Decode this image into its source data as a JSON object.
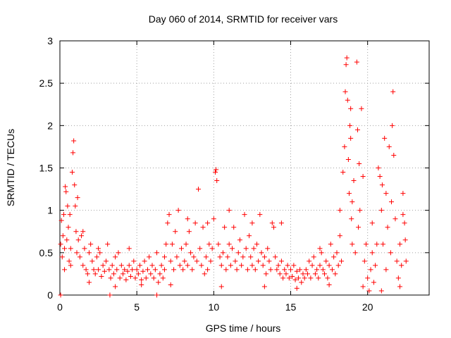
{
  "chart_data": {
    "type": "scatter",
    "title": "Day 060 of 2014, SRMTID for receiver vars",
    "xlabel": "GPS time / hours",
    "ylabel": "SRMTID / TECUs",
    "xlim": [
      0,
      24
    ],
    "ylim": [
      0,
      3
    ],
    "xticks": [
      0,
      5,
      10,
      15,
      20
    ],
    "xtick_labels": [
      "0",
      "5",
      "10",
      "15",
      "20"
    ],
    "yticks": [
      0,
      0.5,
      1,
      1.5,
      2,
      2.5,
      3
    ],
    "ytick_labels": [
      "0",
      "0.5",
      "1",
      "1.5",
      "2",
      "2.5",
      "3"
    ],
    "grid": true,
    "marker": "+",
    "color": "#ff0000",
    "series": [
      {
        "name": "SRMTID",
        "points": [
          [
            0.05,
            0.6
          ],
          [
            0.1,
            0.88
          ],
          [
            0.15,
            0.45
          ],
          [
            0.2,
            0.7
          ],
          [
            0.25,
            0.95
          ],
          [
            0.3,
            0.55
          ],
          [
            0.35,
            1.28
          ],
          [
            0.4,
            1.22
          ],
          [
            0.45,
            0.65
          ],
          [
            0.5,
            1.05
          ],
          [
            0.55,
            0.8
          ],
          [
            0.6,
            0.4
          ],
          [
            0.65,
            0.95
          ],
          [
            0.7,
            0.55
          ],
          [
            0.8,
            1.45
          ],
          [
            0.85,
            1.68
          ],
          [
            0.9,
            1.82
          ],
          [
            0.95,
            1.3
          ],
          [
            1.0,
            1.05
          ],
          [
            1.05,
            0.75
          ],
          [
            1.1,
            0.5
          ],
          [
            1.15,
            1.15
          ],
          [
            1.2,
            0.65
          ],
          [
            1.3,
            0.45
          ],
          [
            1.4,
            0.7
          ],
          [
            1.5,
            0.35
          ],
          [
            1.6,
            0.55
          ],
          [
            1.7,
            0.3
          ],
          [
            1.8,
            0.25
          ],
          [
            1.9,
            0.5
          ],
          [
            2.0,
            0.6
          ],
          [
            2.1,
            0.4
          ],
          [
            2.2,
            0.3
          ],
          [
            2.3,
            0.25
          ],
          [
            2.4,
            0.45
          ],
          [
            2.5,
            0.3
          ],
          [
            2.6,
            0.5
          ],
          [
            2.7,
            0.22
          ],
          [
            2.8,
            0.35
          ],
          [
            2.9,
            0.28
          ],
          [
            3.0,
            0.4
          ],
          [
            3.1,
            0.6
          ],
          [
            3.2,
            0.3
          ],
          [
            3.3,
            0.2
          ],
          [
            3.4,
            0.35
          ],
          [
            3.5,
            0.25
          ],
          [
            3.6,
            0.45
          ],
          [
            3.7,
            0.3
          ],
          [
            3.8,
            0.5
          ],
          [
            3.9,
            0.2
          ],
          [
            4.0,
            0.35
          ],
          [
            4.1,
            0.25
          ],
          [
            4.2,
            0.3
          ],
          [
            4.3,
            0.18
          ],
          [
            4.4,
            0.28
          ],
          [
            4.5,
            0.35
          ],
          [
            4.6,
            0.22
          ],
          [
            4.7,
            0.3
          ],
          [
            4.8,
            0.4
          ],
          [
            4.9,
            0.2
          ],
          [
            5.0,
            0.3
          ],
          [
            5.1,
            0.25
          ],
          [
            5.2,
            0.35
          ],
          [
            5.3,
            0.18
          ],
          [
            5.4,
            0.28
          ],
          [
            5.5,
            0.4
          ],
          [
            5.6,
            0.2
          ],
          [
            5.7,
            0.3
          ],
          [
            5.8,
            0.45
          ],
          [
            5.9,
            0.25
          ],
          [
            6.0,
            0.35
          ],
          [
            6.1,
            0.2
          ],
          [
            6.2,
            0.3
          ],
          [
            6.3,
            0.5
          ],
          [
            6.4,
            0.15
          ],
          [
            6.5,
            0.25
          ],
          [
            6.6,
            0.35
          ],
          [
            6.7,
            0.2
          ],
          [
            6.8,
            0.3
          ],
          [
            6.9,
            0.6
          ],
          [
            7.0,
            0.85
          ],
          [
            7.1,
            0.95
          ],
          [
            7.2,
            0.4
          ],
          [
            7.3,
            0.6
          ],
          [
            7.4,
            0.3
          ],
          [
            7.5,
            0.75
          ],
          [
            7.6,
            0.45
          ],
          [
            7.7,
            1.0
          ],
          [
            7.8,
            0.35
          ],
          [
            7.9,
            0.55
          ],
          [
            8.0,
            0.3
          ],
          [
            8.1,
            0.4
          ],
          [
            8.2,
            0.6
          ],
          [
            8.3,
            0.35
          ],
          [
            8.4,
            0.75
          ],
          [
            8.5,
            0.5
          ],
          [
            8.6,
            0.3
          ],
          [
            8.7,
            0.45
          ],
          [
            8.8,
            0.85
          ],
          [
            8.9,
            0.4
          ],
          [
            9.0,
            1.25
          ],
          [
            9.1,
            0.55
          ],
          [
            9.2,
            0.35
          ],
          [
            9.3,
            0.8
          ],
          [
            9.4,
            0.25
          ],
          [
            9.5,
            0.45
          ],
          [
            9.6,
            0.3
          ],
          [
            9.7,
            0.6
          ],
          [
            9.8,
            0.4
          ],
          [
            9.9,
            0.55
          ],
          [
            10.0,
            0.9
          ],
          [
            10.1,
            1.45
          ],
          [
            10.15,
            1.48
          ],
          [
            10.2,
            1.35
          ],
          [
            10.3,
            0.6
          ],
          [
            10.4,
            0.45
          ],
          [
            10.5,
            0.35
          ],
          [
            10.6,
            0.5
          ],
          [
            10.7,
            0.8
          ],
          [
            10.8,
            0.3
          ],
          [
            10.9,
            0.45
          ],
          [
            11.0,
            0.6
          ],
          [
            11.1,
            0.35
          ],
          [
            11.2,
            0.55
          ],
          [
            11.3,
            0.8
          ],
          [
            11.4,
            0.4
          ],
          [
            11.5,
            0.3
          ],
          [
            11.6,
            0.5
          ],
          [
            11.7,
            0.65
          ],
          [
            11.8,
            0.35
          ],
          [
            11.9,
            0.45
          ],
          [
            12.0,
            0.95
          ],
          [
            12.1,
            0.55
          ],
          [
            12.2,
            0.3
          ],
          [
            12.3,
            0.7
          ],
          [
            12.4,
            0.45
          ],
          [
            12.5,
            0.35
          ],
          [
            12.6,
            0.55
          ],
          [
            12.7,
            0.3
          ],
          [
            12.8,
            0.6
          ],
          [
            12.9,
            0.4
          ],
          [
            13.0,
            0.95
          ],
          [
            13.1,
            0.5
          ],
          [
            13.2,
            0.35
          ],
          [
            13.3,
            0.45
          ],
          [
            13.4,
            0.25
          ],
          [
            13.5,
            0.55
          ],
          [
            13.6,
            0.4
          ],
          [
            13.7,
            0.3
          ],
          [
            13.8,
            0.85
          ],
          [
            13.9,
            0.8
          ],
          [
            14.0,
            0.45
          ],
          [
            14.1,
            0.3
          ],
          [
            14.2,
            0.35
          ],
          [
            14.3,
            0.25
          ],
          [
            14.4,
            0.4
          ],
          [
            14.5,
            0.2
          ],
          [
            14.6,
            0.3
          ],
          [
            14.7,
            0.25
          ],
          [
            14.8,
            0.35
          ],
          [
            14.9,
            0.2
          ],
          [
            15.0,
            0.3
          ],
          [
            15.1,
            0.22
          ],
          [
            15.2,
            0.35
          ],
          [
            15.3,
            0.18
          ],
          [
            15.4,
            0.28
          ],
          [
            15.5,
            0.2
          ],
          [
            15.6,
            0.3
          ],
          [
            15.7,
            0.15
          ],
          [
            15.8,
            0.25
          ],
          [
            15.9,
            0.2
          ],
          [
            16.0,
            0.3
          ],
          [
            16.1,
            0.25
          ],
          [
            16.2,
            0.4
          ],
          [
            16.3,
            0.2
          ],
          [
            16.4,
            0.35
          ],
          [
            16.5,
            0.45
          ],
          [
            16.6,
            0.25
          ],
          [
            16.7,
            0.3
          ],
          [
            16.8,
            0.2
          ],
          [
            16.9,
            0.35
          ],
          [
            17.0,
            0.5
          ],
          [
            17.1,
            0.3
          ],
          [
            17.2,
            0.25
          ],
          [
            17.3,
            0.4
          ],
          [
            17.4,
            0.2
          ],
          [
            17.5,
            0.35
          ],
          [
            17.6,
            0.6
          ],
          [
            17.7,
            0.3
          ],
          [
            17.8,
            0.45
          ],
          [
            17.9,
            0.25
          ],
          [
            18.0,
            0.5
          ],
          [
            18.1,
            0.35
          ],
          [
            18.2,
            0.7
          ],
          [
            18.3,
            0.4
          ],
          [
            18.4,
            1.45
          ],
          [
            18.5,
            1.75
          ],
          [
            18.55,
            2.4
          ],
          [
            18.6,
            2.72
          ],
          [
            18.65,
            2.8
          ],
          [
            18.7,
            2.3
          ],
          [
            18.75,
            1.6
          ],
          [
            18.8,
            1.2
          ],
          [
            18.85,
            2.0
          ],
          [
            18.9,
            2.2
          ],
          [
            18.95,
            0.9
          ],
          [
            19.0,
            0.6
          ],
          [
            19.1,
            1.35
          ],
          [
            19.2,
            0.5
          ],
          [
            19.3,
            2.75
          ],
          [
            19.35,
            1.95
          ],
          [
            19.4,
            0.8
          ],
          [
            19.5,
            1.0
          ],
          [
            19.6,
            2.2
          ],
          [
            19.7,
            1.4
          ],
          [
            19.8,
            0.4
          ],
          [
            19.9,
            0.6
          ],
          [
            20.0,
            0.2
          ],
          [
            20.1,
            0.05
          ],
          [
            20.2,
            0.3
          ],
          [
            20.3,
            0.5
          ],
          [
            20.4,
            0.15
          ],
          [
            20.5,
            0.35
          ],
          [
            20.6,
            0.6
          ],
          [
            20.7,
            1.5
          ],
          [
            20.8,
            1.4
          ],
          [
            20.9,
            1.0
          ],
          [
            21.0,
            0.6
          ],
          [
            21.1,
            1.85
          ],
          [
            21.2,
            0.3
          ],
          [
            21.3,
            0.8
          ],
          [
            21.4,
            1.75
          ],
          [
            21.5,
            0.5
          ],
          [
            21.6,
            2.0
          ],
          [
            21.65,
            2.4
          ],
          [
            21.7,
            1.65
          ],
          [
            21.8,
            0.9
          ],
          [
            21.9,
            0.4
          ],
          [
            22.0,
            0.2
          ],
          [
            22.1,
            0.6
          ],
          [
            22.2,
            0.35
          ],
          [
            22.3,
            1.2
          ],
          [
            22.4,
            0.85
          ],
          [
            22.5,
            0.4
          ],
          [
            0.05,
            0.0
          ],
          [
            3.25,
            0.0
          ],
          [
            6.3,
            0.0
          ],
          [
            0.3,
            0.3
          ],
          [
            1.5,
            0.75
          ],
          [
            2.5,
            0.55
          ],
          [
            4.5,
            0.55
          ],
          [
            6.8,
            0.45
          ],
          [
            8.3,
            0.9
          ],
          [
            9.6,
            0.85
          ],
          [
            11.0,
            1.0
          ],
          [
            12.5,
            0.85
          ],
          [
            14.4,
            0.85
          ],
          [
            16.9,
            0.55
          ],
          [
            18.2,
            1.0
          ],
          [
            19.0,
            1.1
          ],
          [
            20.3,
            0.85
          ],
          [
            21.2,
            1.2
          ],
          [
            22.3,
            0.95
          ],
          [
            0.7,
            0.35
          ],
          [
            1.9,
            0.15
          ],
          [
            3.6,
            0.1
          ],
          [
            5.3,
            0.12
          ],
          [
            7.2,
            0.12
          ],
          [
            10.5,
            0.1
          ],
          [
            13.3,
            0.1
          ],
          [
            15.4,
            0.08
          ],
          [
            17.5,
            0.12
          ],
          [
            19.7,
            0.1
          ],
          [
            20.9,
            0.05
          ],
          [
            22.1,
            0.1
          ],
          [
            18.9,
            1.85
          ],
          [
            19.45,
            1.55
          ],
          [
            20.95,
            1.3
          ],
          [
            21.55,
            1.1
          ],
          [
            22.45,
            0.65
          ]
        ]
      }
    ]
  }
}
